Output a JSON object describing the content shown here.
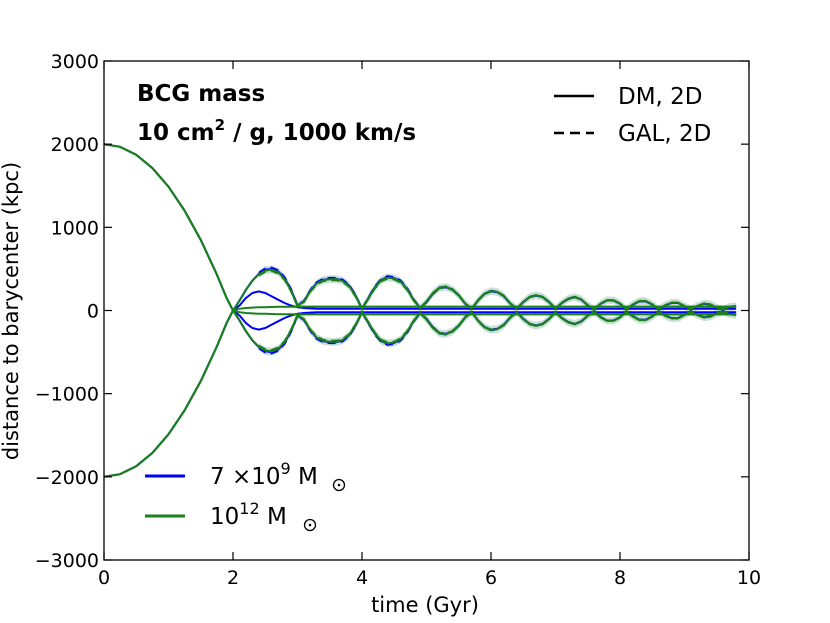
{
  "chart_data": {
    "type": "line",
    "title": "",
    "xlabel": "time (Gyr)",
    "ylabel": "distance to barycenter (kpc)",
    "xlim": [
      0,
      10
    ],
    "ylim": [
      -3000,
      3000
    ],
    "xticks": [
      "0",
      "2",
      "4",
      "6",
      "8",
      "10"
    ],
    "yticks": [
      "−3000",
      "−2000",
      "−1000",
      "0",
      "1000",
      "2000",
      "3000"
    ],
    "annotation": {
      "line1": "BCG mass",
      "line2_prefix": "10 cm",
      "line2_sup": "2",
      "line2_suffix": " / g, 1000 km/s"
    },
    "style_legend": [
      {
        "label": "DM, 2D",
        "linestyle": "solid"
      },
      {
        "label": "GAL, 2D",
        "linestyle": "dashed"
      }
    ],
    "colors": {
      "blue": "#0000ff",
      "green": "#1a801a",
      "blue_band": "#c8c8ff",
      "green_band": "#b4ddb4"
    },
    "series": [
      {
        "name": "7 ×10^9 M☉",
        "legend_main": "7 ×10",
        "legend_exp": "9",
        "legend_unit": " M",
        "color": "blue",
        "x": [
          0,
          0.25,
          0.5,
          0.75,
          1.0,
          1.25,
          1.5,
          1.75,
          1.9,
          2.0,
          2.1,
          2.2,
          2.3,
          2.4,
          2.5,
          2.6,
          2.7,
          2.8,
          2.9,
          3.0,
          3.1,
          3.2,
          3.3,
          3.4,
          3.5,
          3.6,
          3.7,
          3.8,
          3.9,
          4.0,
          4.1,
          4.2,
          4.3,
          4.4,
          4.5,
          4.6,
          4.7,
          4.8,
          4.9,
          5.0,
          5.1,
          5.2,
          5.3,
          5.4,
          5.5,
          5.6,
          5.7,
          5.8,
          5.9,
          6.0,
          6.1,
          6.2,
          6.3,
          6.4,
          6.5,
          6.6,
          6.7,
          6.8,
          6.9,
          7.0,
          7.1,
          7.2,
          7.3,
          7.4,
          7.5,
          7.6,
          7.7,
          7.8,
          7.9,
          8.0,
          8.1,
          8.2,
          8.3,
          8.4,
          8.5,
          8.6,
          8.7,
          8.8,
          8.9,
          9.0,
          9.1,
          9.2,
          9.3,
          9.4,
          9.5,
          9.6,
          9.7,
          9.8
        ],
        "dm_upper": [
          2000,
          1968,
          1872,
          1712,
          1488,
          1200,
          848,
          432,
          150,
          0,
          120,
          250,
          360,
          440,
          490,
          500,
          470,
          390,
          250,
          60,
          110,
          240,
          330,
          370,
          380,
          380,
          360,
          300,
          180,
          20,
          150,
          280,
          370,
          400,
          390,
          350,
          260,
          130,
          30,
          100,
          200,
          270,
          280,
          250,
          180,
          80,
          20,
          120,
          200,
          230,
          220,
          170,
          80,
          20,
          100,
          160,
          180,
          160,
          100,
          20,
          90,
          140,
          160,
          130,
          60,
          10,
          80,
          120,
          120,
          80,
          10,
          70,
          110,
          110,
          70,
          10,
          60,
          90,
          90,
          50,
          10,
          50,
          80,
          70,
          30,
          10,
          40,
          50
        ],
        "dm_lower": [
          -2000,
          -1968,
          -1872,
          -1712,
          -1488,
          -1200,
          -848,
          -432,
          -150,
          0,
          -120,
          -250,
          -360,
          -440,
          -490,
          -500,
          -470,
          -390,
          -250,
          -60,
          -110,
          -240,
          -330,
          -370,
          -380,
          -380,
          -360,
          -300,
          -180,
          -20,
          -150,
          -280,
          -370,
          -400,
          -390,
          -350,
          -260,
          -130,
          -30,
          -100,
          -200,
          -270,
          -280,
          -250,
          -180,
          -80,
          -20,
          -120,
          -200,
          -230,
          -220,
          -170,
          -80,
          -20,
          -100,
          -160,
          -180,
          -160,
          -100,
          -20,
          -90,
          -140,
          -160,
          -130,
          -60,
          -10,
          -80,
          -120,
          -120,
          -80,
          -10,
          -70,
          -110,
          -110,
          -70,
          -10,
          -60,
          -90,
          -90,
          -50,
          -10,
          -50,
          -80,
          -70,
          -30,
          -10,
          -40,
          -50
        ],
        "bcg_upper": [
          2000,
          1968,
          1872,
          1712,
          1488,
          1200,
          848,
          432,
          150,
          0,
          60,
          150,
          210,
          230,
          210,
          170,
          130,
          90,
          60,
          40,
          30,
          25,
          22,
          20,
          20,
          20,
          20,
          20,
          20,
          20,
          20,
          20,
          20,
          20,
          20,
          20,
          20,
          20,
          20,
          20,
          20,
          20,
          20,
          20,
          20,
          20,
          20,
          20,
          20,
          20,
          20,
          20,
          20,
          20,
          20,
          20,
          20,
          20,
          20,
          20,
          20,
          20,
          20,
          20,
          20,
          20,
          20,
          20,
          20,
          20,
          20,
          20,
          20,
          20,
          20,
          20,
          20,
          20,
          20,
          20,
          20,
          20,
          20,
          20,
          20,
          20,
          20,
          20
        ],
        "bcg_lower": [
          -2000,
          -1968,
          -1872,
          -1712,
          -1488,
          -1200,
          -848,
          -432,
          -150,
          0,
          -60,
          -150,
          -210,
          -230,
          -210,
          -170,
          -130,
          -90,
          -60,
          -40,
          -30,
          -25,
          -22,
          -20,
          -20,
          -20,
          -20,
          -20,
          -20,
          -20,
          -20,
          -20,
          -20,
          -20,
          -20,
          -20,
          -20,
          -20,
          -20,
          -20,
          -20,
          -20,
          -20,
          -20,
          -20,
          -20,
          -20,
          -20,
          -20,
          -20,
          -20,
          -20,
          -20,
          -20,
          -20,
          -20,
          -20,
          -20,
          -20,
          -20,
          -20,
          -20,
          -20,
          -20,
          -20,
          -20,
          -20,
          -20,
          -20,
          -20,
          -20,
          -20,
          -20,
          -20,
          -20,
          -20,
          -20,
          -20,
          -20,
          -20,
          -20,
          -20,
          -20,
          -20,
          -20,
          -20,
          -20,
          -20
        ]
      },
      {
        "name": "10^12 M☉",
        "legend_main": "10",
        "legend_exp": "12",
        "legend_unit": " M",
        "color": "green",
        "x": [
          0,
          0.25,
          0.5,
          0.75,
          1.0,
          1.25,
          1.5,
          1.75,
          1.9,
          2.0,
          2.1,
          2.2,
          2.3,
          2.4,
          2.5,
          2.6,
          2.7,
          2.8,
          2.9,
          3.0,
          3.1,
          3.2,
          3.3,
          3.4,
          3.5,
          3.6,
          3.7,
          3.8,
          3.9,
          4.0,
          4.1,
          4.2,
          4.3,
          4.4,
          4.5,
          4.6,
          4.7,
          4.8,
          4.9,
          5.0,
          5.1,
          5.2,
          5.3,
          5.4,
          5.5,
          5.6,
          5.7,
          5.8,
          5.9,
          6.0,
          6.1,
          6.2,
          6.3,
          6.4,
          6.5,
          6.6,
          6.7,
          6.8,
          6.9,
          7.0,
          7.1,
          7.2,
          7.3,
          7.4,
          7.5,
          7.6,
          7.7,
          7.8,
          7.9,
          8.0,
          8.1,
          8.2,
          8.3,
          8.4,
          8.5,
          8.6,
          8.7,
          8.8,
          8.9,
          9.0,
          9.1,
          9.2,
          9.3,
          9.4,
          9.5,
          9.6,
          9.7,
          9.8
        ],
        "dm_upper": [
          2000,
          1968,
          1872,
          1712,
          1488,
          1200,
          848,
          432,
          150,
          0,
          115,
          245,
          355,
          435,
          480,
          490,
          460,
          380,
          240,
          55,
          105,
          235,
          325,
          365,
          375,
          375,
          355,
          295,
          175,
          20,
          145,
          275,
          365,
          395,
          385,
          345,
          255,
          125,
          30,
          110,
          210,
          275,
          285,
          255,
          185,
          85,
          25,
          125,
          205,
          235,
          225,
          175,
          85,
          25,
          105,
          165,
          185,
          165,
          105,
          25,
          95,
          145,
          165,
          135,
          65,
          15,
          85,
          125,
          125,
          85,
          15,
          75,
          115,
          115,
          75,
          15,
          65,
          95,
          95,
          55,
          15,
          55,
          85,
          75,
          35,
          15,
          45,
          55
        ],
        "dm_lower": [
          -2000,
          -1968,
          -1872,
          -1712,
          -1488,
          -1200,
          -848,
          -432,
          -150,
          0,
          -115,
          -245,
          -355,
          -435,
          -480,
          -490,
          -460,
          -380,
          -240,
          -55,
          -105,
          -235,
          -325,
          -365,
          -375,
          -375,
          -355,
          -295,
          -175,
          -20,
          -145,
          -275,
          -365,
          -395,
          -385,
          -345,
          -255,
          -125,
          -30,
          -110,
          -210,
          -275,
          -285,
          -255,
          -185,
          -85,
          -25,
          -125,
          -205,
          -235,
          -225,
          -175,
          -85,
          -25,
          -105,
          -165,
          -185,
          -165,
          -105,
          -25,
          -95,
          -145,
          -165,
          -135,
          -65,
          -15,
          -85,
          -125,
          -125,
          -85,
          -15,
          -75,
          -115,
          -115,
          -75,
          -15,
          -65,
          -95,
          -95,
          -55,
          -15,
          -55,
          -85,
          -75,
          -35,
          -15,
          -45,
          -55
        ],
        "bcg_upper": [
          2000,
          1968,
          1872,
          1712,
          1488,
          1200,
          848,
          432,
          150,
          0,
          20,
          30,
          35,
          38,
          40,
          42,
          44,
          45,
          46,
          46,
          47,
          47,
          47,
          47,
          47,
          47,
          47,
          47,
          47,
          47,
          47,
          47,
          47,
          47,
          47,
          47,
          47,
          47,
          47,
          47,
          47,
          47,
          47,
          47,
          47,
          47,
          47,
          47,
          47,
          47,
          47,
          47,
          47,
          47,
          47,
          47,
          47,
          47,
          47,
          47,
          47,
          47,
          47,
          47,
          47,
          47,
          47,
          47,
          47,
          47,
          47,
          47,
          47,
          47,
          47,
          47,
          47,
          47,
          47,
          47,
          47,
          47,
          47,
          47,
          47,
          47,
          47,
          47
        ],
        "bcg_lower": [
          -2000,
          -1968,
          -1872,
          -1712,
          -1488,
          -1200,
          -848,
          -432,
          -150,
          0,
          -20,
          -30,
          -35,
          -38,
          -40,
          -42,
          -44,
          -45,
          -46,
          -46,
          -47,
          -47,
          -47,
          -47,
          -47,
          -47,
          -47,
          -47,
          -47,
          -47,
          -47,
          -47,
          -47,
          -47,
          -47,
          -47,
          -47,
          -47,
          -47,
          -47,
          -47,
          -47,
          -47,
          -47,
          -47,
          -47,
          -47,
          -47,
          -47,
          -47,
          -47,
          -47,
          -47,
          -47,
          -47,
          -47,
          -47,
          -47,
          -47,
          -47,
          -47,
          -47,
          -47,
          -47,
          -47,
          -47,
          -47,
          -47,
          -47,
          -47,
          -47,
          -47,
          -47,
          -47,
          -47,
          -47,
          -47,
          -47,
          -47,
          -47,
          -47,
          -47,
          -47,
          -47,
          -47,
          -47,
          -47,
          -47
        ]
      }
    ],
    "legend_position": "lower-left; style legend upper-right"
  }
}
